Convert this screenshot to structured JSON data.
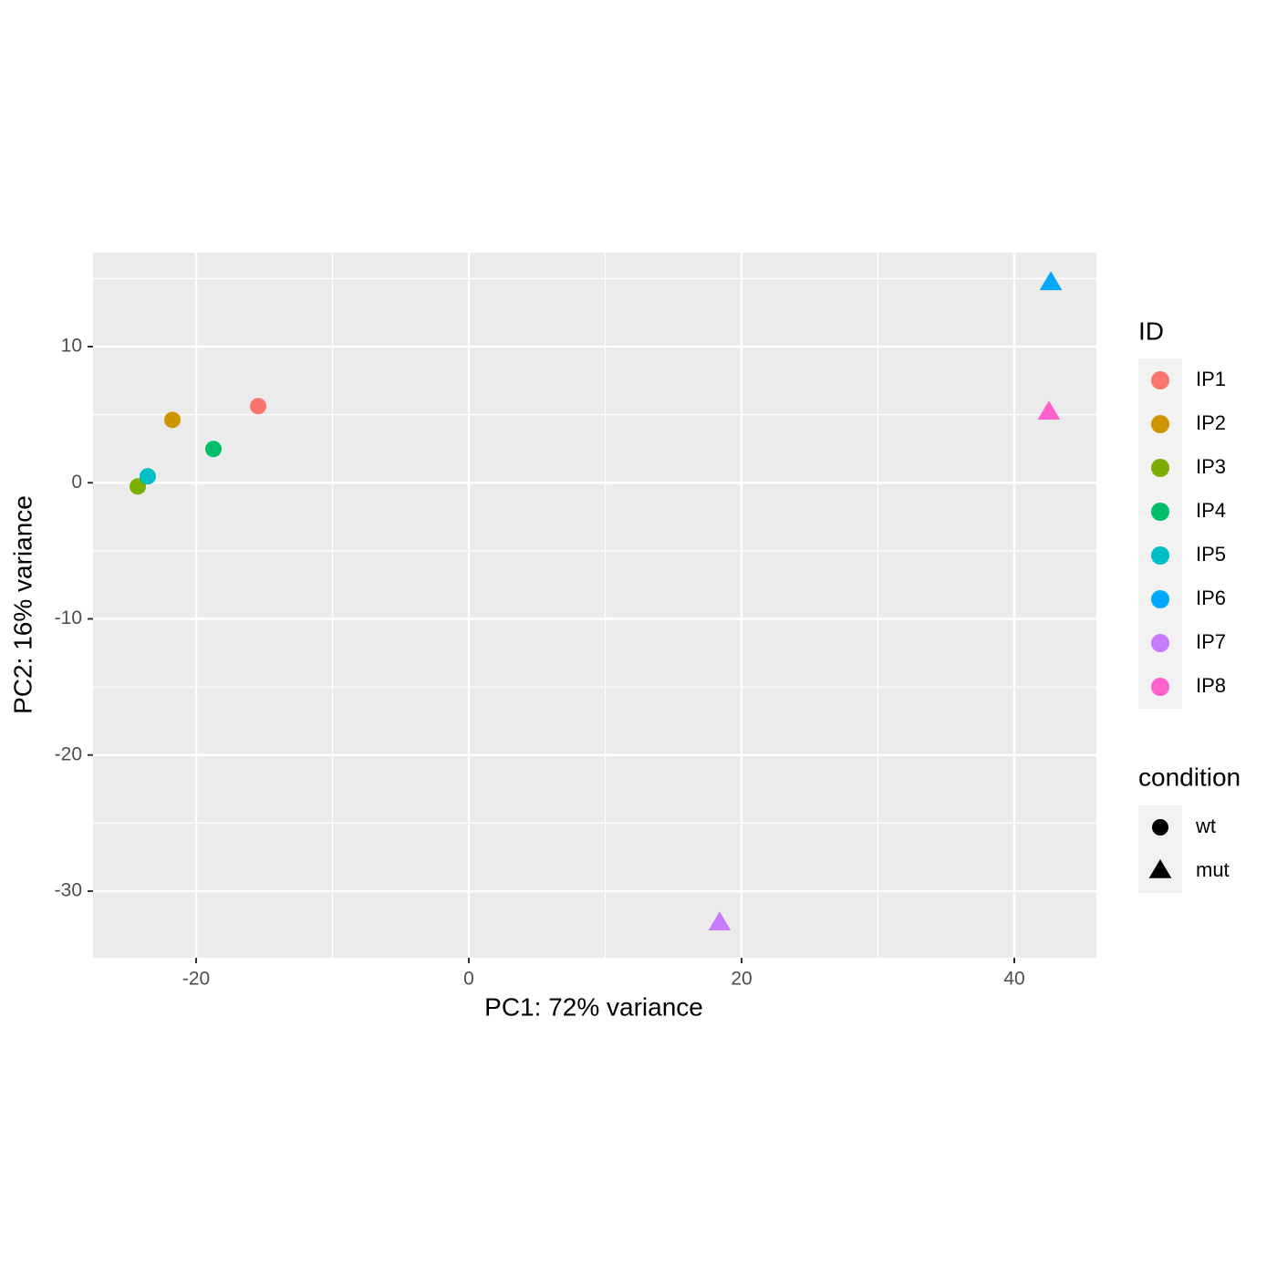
{
  "chart_data": {
    "type": "scatter",
    "x_label": "PC1: 72% variance",
    "y_label": "PC2: 16% variance",
    "xlim": [
      -27.56,
      46.02
    ],
    "ylim": [
      -34.89,
      16.9
    ],
    "xticks": [
      -20,
      0,
      20,
      40
    ],
    "yticks": [
      -30,
      -20,
      -10,
      0,
      10
    ],
    "grid": true,
    "legend_title": "ID",
    "shape_legend": {
      "title": "condition",
      "items": [
        {
          "name": "wt",
          "shape": "circle"
        },
        {
          "name": "mut",
          "shape": "triangle"
        }
      ]
    },
    "series": [
      {
        "name": "IP1",
        "color": "#F8766D",
        "condition": "wt",
        "x": [
          -15.45
        ],
        "values": [
          5.63
        ]
      },
      {
        "name": "IP2",
        "color": "#CD9600",
        "condition": "wt",
        "x": [
          -21.74
        ],
        "values": [
          4.62
        ]
      },
      {
        "name": "IP3",
        "color": "#7CAE00",
        "condition": "wt",
        "x": [
          -24.28
        ],
        "values": [
          -0.27
        ]
      },
      {
        "name": "IP4",
        "color": "#00BE67",
        "condition": "wt",
        "x": [
          -18.73
        ],
        "values": [
          2.48
        ]
      },
      {
        "name": "IP5",
        "color": "#00BFC4",
        "condition": "wt",
        "x": [
          -23.55
        ],
        "values": [
          0.47
        ]
      },
      {
        "name": "IP6",
        "color": "#00A9FF",
        "condition": "mut",
        "x": [
          42.68
        ],
        "values": [
          14.67
        ]
      },
      {
        "name": "IP7",
        "color": "#C77CFF",
        "condition": "mut",
        "x": [
          18.39
        ],
        "values": [
          -32.36
        ]
      },
      {
        "name": "IP8",
        "color": "#FF61CC",
        "condition": "mut",
        "x": [
          42.54
        ],
        "values": [
          5.16
        ]
      }
    ]
  }
}
